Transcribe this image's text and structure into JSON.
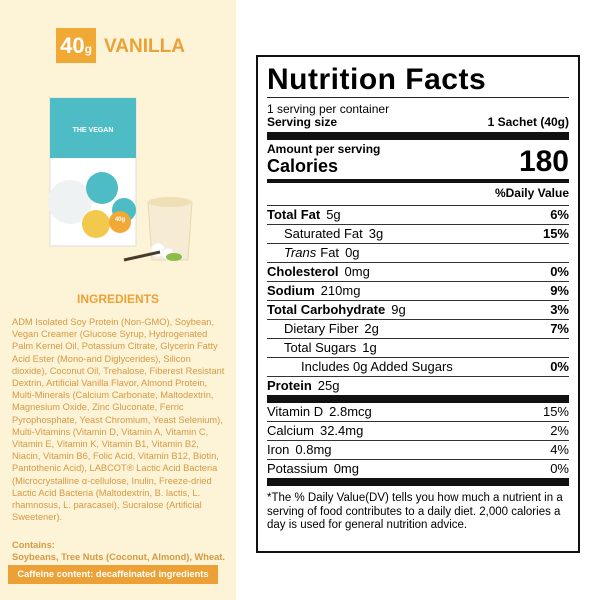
{
  "product": {
    "badge_number": "40",
    "badge_unit": "g",
    "name": "VANILLA",
    "package_brand": "THE VEGAN",
    "package_badge": "40g"
  },
  "ingredients": {
    "heading": "INGREDIENTS",
    "text": "ADM Isolated Soy Protein (Non-GMO), Soybean, Vegan Creamer (Glucose Syrup, Hydrogenated Palm Kernel Oil, Potassium Citrate, Glycerin Fatty Acid Ester (Mono-and Diglycerides), Silicon dioxide), Coconut Oil, Trehalose, Fiberest Resistant Dextrin, Artificial Vanilla Flavor, Almond Protein, Multi-Minerals (Calcium Carbonate, Maltodextrin, Magnesium Oxide, Zinc Gluconate, Ferric Pyrophosphate, Yeast Chromium, Yeast Selenium), Multi-Vitamins (Vitamin D, Vitamin A, Vitamin C, Vitamin E, Vitamin K, Vitamin B1, Vitamin B2, Niacin, Vitamin B6, Folic Acid, Vitamin B12, Biotin, Pantothenic Acid), LABCOT® Lactic Acid Bacteria (Microcrystalline α-cellulose, Inulin, Freeze-dried Lactic Acid Bacteria (Maltodextrin, B. lactis, L. rhamnosus, L. paracasei), Sucralose (Artificial Sweetener).",
    "contains_heading": "Contains:",
    "contains": "Soybeans, Tree Nuts (Coconut, Almond), Wheat.",
    "caffeine": "Caffeine content: decaffeinated ingredients"
  },
  "nutrition": {
    "title": "Nutrition Facts",
    "servings": "1 serving per container",
    "serving_size_label": "Serving size",
    "serving_size": "1 Sachet (40g)",
    "amount_per_serving": "Amount per serving",
    "calories_label": "Calories",
    "calories": "180",
    "dv_header": "%Daily Value",
    "nutrients": [
      {
        "name": "Total Fat",
        "amount": "5g",
        "dv": "6%",
        "sub": [
          {
            "name": "Saturated Fat",
            "amount": "3g",
            "dv": "15%"
          },
          {
            "name_italic": "Trans",
            "name": "Fat",
            "amount": "0g"
          }
        ]
      },
      {
        "name": "Cholesterol",
        "amount": "0mg",
        "dv": "0%"
      },
      {
        "name": "Sodium",
        "amount": "210mg",
        "dv": "9%"
      },
      {
        "name": "Total Carbohydrate",
        "amount": "9g",
        "dv": "3%",
        "sub": [
          {
            "name": "Dietary Fiber",
            "amount": "2g",
            "dv": "7%"
          },
          {
            "name": "Total Sugars",
            "amount": "1g",
            "sub": [
              {
                "name": "Includes 0g Added Sugars",
                "dv": "0%"
              }
            ]
          }
        ]
      },
      {
        "name": "Protein",
        "amount": "25g"
      }
    ],
    "vitamins": [
      {
        "name": "Vitamin D",
        "amount": "2.8mcg",
        "dv": "15%"
      },
      {
        "name": "Calcium",
        "amount": "32.4mg",
        "dv": "2%"
      },
      {
        "name": "Iron",
        "amount": "0.8mg",
        "dv": "4%"
      },
      {
        "name": "Potassium",
        "amount": "0mg",
        "dv": "0%"
      }
    ],
    "footnote": "*The % Daily Value(DV) tells you how much a nutrient in a serving of food contributes to a daily diet. 2,000 calories a day is used for general nutrition advice."
  }
}
